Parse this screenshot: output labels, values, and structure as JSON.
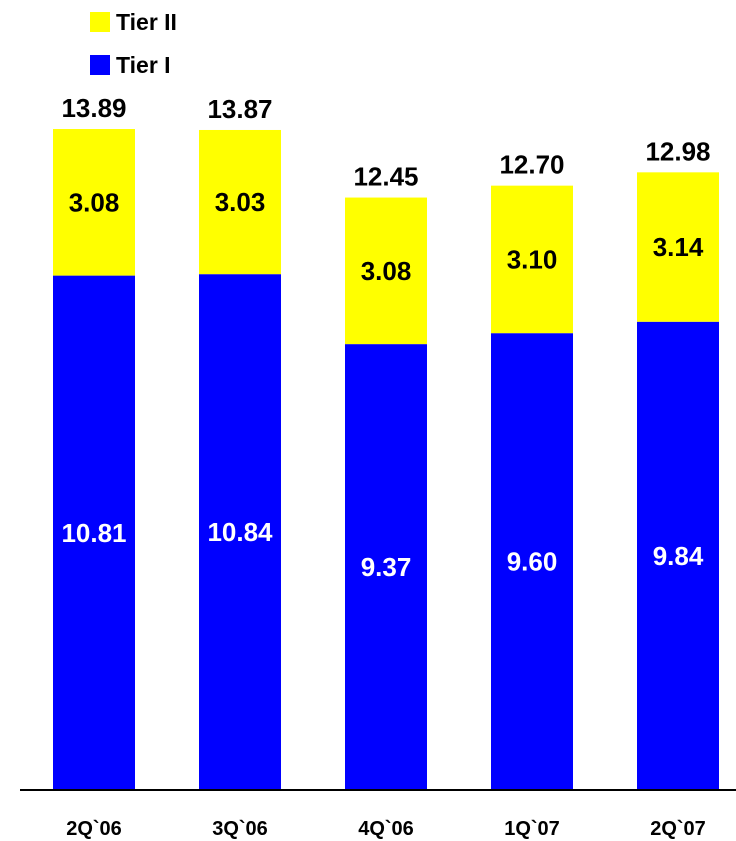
{
  "chart_data": {
    "type": "bar",
    "stacked": true,
    "categories": [
      "2Q`06",
      "3Q`06",
      "4Q`06",
      "1Q`07",
      "2Q`07"
    ],
    "series": [
      {
        "name": "Tier I",
        "color": "#0000ff",
        "values": [
          10.81,
          10.84,
          9.37,
          9.6,
          9.84
        ],
        "value_labels": [
          "10.81",
          "10.84",
          "9.37",
          "9.60",
          "9.84"
        ]
      },
      {
        "name": "Tier II",
        "color": "#ffff00",
        "values": [
          3.08,
          3.03,
          3.08,
          3.1,
          3.14
        ],
        "value_labels": [
          "3.08",
          "3.03",
          "3.08",
          "3.10",
          "3.14"
        ]
      }
    ],
    "totals": [
      13.89,
      13.87,
      12.45,
      12.7,
      12.98
    ],
    "total_labels": [
      "13.89",
      "13.87",
      "12.45",
      "12.70",
      "12.98"
    ],
    "title": "",
    "xlabel": "",
    "ylabel": "",
    "ylim": [
      0,
      14.5
    ],
    "grid": false,
    "legend_position": "top-left",
    "legend_order": [
      "Tier II",
      "Tier I"
    ]
  }
}
